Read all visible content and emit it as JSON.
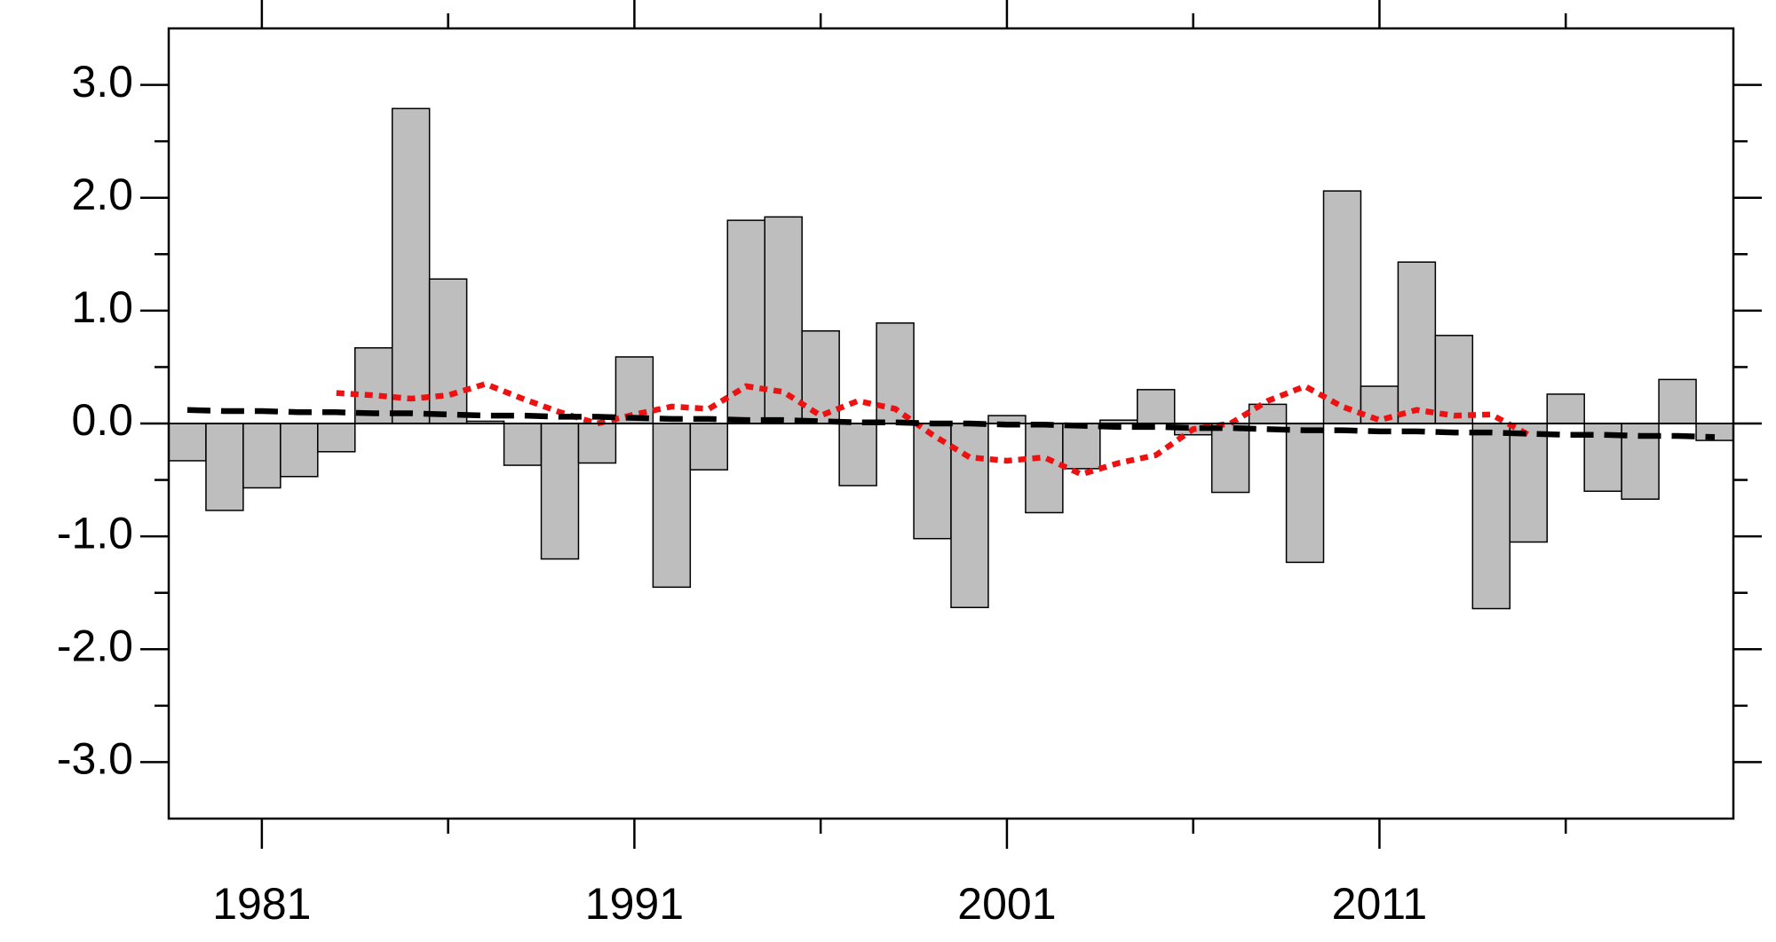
{
  "chart_data": {
    "type": "bar",
    "x": [
      1979,
      1980,
      1981,
      1982,
      1983,
      1984,
      1985,
      1986,
      1987,
      1988,
      1989,
      1990,
      1991,
      1992,
      1993,
      1994,
      1995,
      1996,
      1997,
      1998,
      1999,
      2000,
      2001,
      2002,
      2003,
      2004,
      2005,
      2006,
      2007,
      2008,
      2009,
      2010,
      2011,
      2012,
      2013,
      2014,
      2015,
      2016,
      2017,
      2018,
      2019,
      2020
    ],
    "series": [
      {
        "type": "bar",
        "color": "#bebebe",
        "values": [
          -0.33,
          -0.77,
          -0.57,
          -0.47,
          -0.25,
          0.67,
          2.79,
          1.28,
          0.02,
          -0.37,
          -1.2,
          -0.35,
          0.59,
          -1.45,
          -0.41,
          1.8,
          1.83,
          0.82,
          -0.55,
          0.89,
          -1.02,
          -1.63,
          0.07,
          -0.79,
          -0.4,
          0.03,
          0.3,
          -0.1,
          -0.61,
          0.17,
          -1.23,
          2.06,
          0.33,
          1.43,
          0.78,
          -1.64,
          -1.05,
          0.26,
          -0.6,
          -0.67,
          0.39,
          -0.15
        ]
      },
      {
        "type": "line",
        "color": "#ee1111",
        "style": "dotted",
        "values": [
          null,
          null,
          null,
          null,
          0.27,
          0.25,
          0.22,
          0.25,
          0.35,
          0.22,
          0.1,
          0.0,
          0.08,
          0.15,
          0.13,
          0.33,
          0.28,
          0.07,
          0.2,
          0.13,
          -0.1,
          -0.3,
          -0.33,
          -0.3,
          -0.45,
          -0.35,
          -0.28,
          -0.05,
          0.0,
          0.2,
          0.33,
          0.15,
          0.03,
          0.12,
          0.07,
          0.08,
          -0.1,
          null,
          null,
          null,
          null,
          null
        ]
      },
      {
        "type": "line",
        "color": "#000000",
        "style": "dashed",
        "values": [
          0.12,
          0.11,
          0.11,
          0.1,
          0.1,
          0.09,
          0.09,
          0.08,
          0.07,
          0.07,
          0.06,
          0.06,
          0.05,
          0.04,
          0.04,
          0.03,
          0.03,
          0.02,
          0.01,
          0.01,
          0.0,
          0.0,
          -0.01,
          -0.01,
          -0.02,
          -0.03,
          -0.03,
          -0.04,
          -0.04,
          -0.05,
          -0.06,
          -0.06,
          -0.07,
          -0.07,
          -0.08,
          -0.08,
          -0.09,
          -0.1,
          -0.1,
          -0.11,
          -0.11,
          -0.12
        ]
      }
    ],
    "xlim": [
      1978.5,
      2020.5
    ],
    "xticks": [
      1981,
      1991,
      2001,
      2011
    ],
    "xticks_minor": [
      1986,
      1996,
      2006,
      2016
    ],
    "ylim": [
      -3.5,
      3.5
    ],
    "yticks": [
      {
        "value": -3,
        "label": "-3.0"
      },
      {
        "value": -2,
        "label": "-2.0"
      },
      {
        "value": -1,
        "label": "-1.0"
      },
      {
        "value": 0,
        "label": "0.0"
      },
      {
        "value": 1,
        "label": "1.0"
      },
      {
        "value": 2,
        "label": "2.0"
      },
      {
        "value": 3,
        "label": "3.0"
      }
    ],
    "yticks_minor": [
      -2.5,
      -1.5,
      -0.5,
      0.5,
      1.5,
      2.5
    ]
  }
}
